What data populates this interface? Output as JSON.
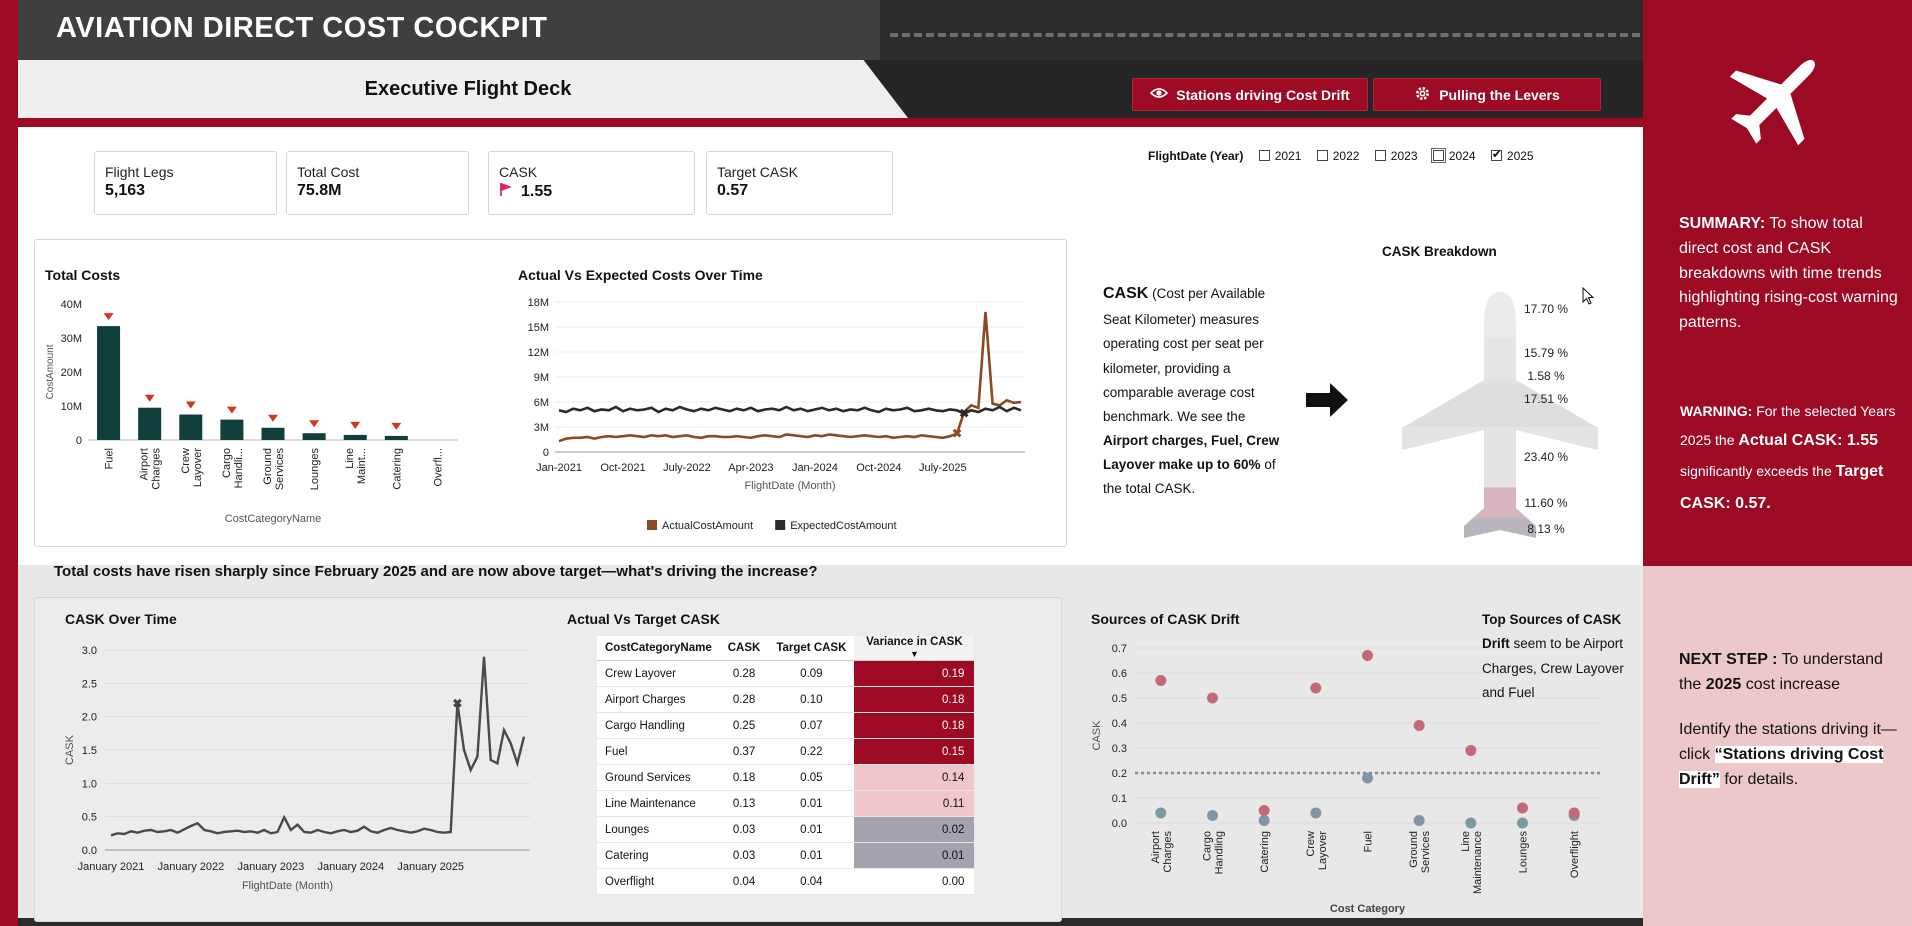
{
  "header": {
    "app_title": "AVIATION DIRECT COST COCKPIT",
    "subtitle": "Executive Flight Deck",
    "btn_stations": "Stations driving Cost Drift",
    "btn_levers": "Pulling the Levers"
  },
  "kpis": [
    {
      "label": "Flight Legs",
      "value": "5,163"
    },
    {
      "label": "Total Cost",
      "value": "75.8M"
    },
    {
      "label": "CASK",
      "value": "1.55"
    },
    {
      "label": "Target CASK",
      "value": "0.57"
    }
  ],
  "year_filter": {
    "label": "FlightDate (Year)",
    "years": [
      {
        "label": "2021",
        "checked": false
      },
      {
        "label": "2022",
        "checked": false
      },
      {
        "label": "2023",
        "checked": false
      },
      {
        "label": "2024",
        "checked": false
      },
      {
        "label": "2025",
        "checked": true
      }
    ]
  },
  "cask_text": {
    "lead": "CASK",
    "p1": " (Cost per Available Seat Kilometer) measures operating cost per seat per kilometer, providing a comparable average cost benchmark. We see the ",
    "bold": "Airport charges, Fuel, Crew Layover make up to 60%",
    "p2": " of the total CASK."
  },
  "question": "Total costs have risen sharply since February 2025 and are now above target—what's driving the increase?",
  "sidebar": {
    "summary_label": "SUMMARY:",
    "summary_text": " To show total direct cost and CASK breakdowns with time trends highlighting rising-cost warning patterns.",
    "warning_label": "WARNING:",
    "warning_t1": " For the selected Years   2025 the ",
    "warning_actual": "Actual CASK: 1.55",
    "warning_t2": " significantly exceeds the ",
    "warning_target": "Target CASK: 0.57.",
    "next_label": "NEXT STEP :",
    "next_t1": " To understand the ",
    "next_year": "2025",
    "next_t2": " cost increase",
    "identify_t1": "Identify the stations driving it—click ",
    "identify_link": "“Stations driving Cost Drift”",
    "identify_t2": " for details."
  },
  "chart_data": [
    {
      "type": "bar",
      "title": "Total Costs",
      "xlabel": "CostCategoryName",
      "ylabel": "CostAmount",
      "categories": [
        "Fuel",
        "Airport Charges",
        "Crew Layover",
        "Cargo Handli...",
        "Ground Services",
        "Lounges",
        "Line Maint...",
        "Catering",
        "Overfl..."
      ],
      "values": [
        33.5,
        9.5,
        7.5,
        6.0,
        3.6,
        2.0,
        1.5,
        1.2,
        0
      ],
      "yticks": [
        "0",
        "10M",
        "20M",
        "30M",
        "40M"
      ],
      "ylim": [
        0,
        40
      ],
      "color": "#11403c",
      "warning_color": "#d9341f"
    },
    {
      "type": "line",
      "title": "Actual Vs Expected Costs Over Time",
      "xlabel": "FlightDate (Month)",
      "xticks": [
        "Jan-2021",
        "Oct-2021",
        "July-2022",
        "Apr-2023",
        "Jan-2024",
        "Oct-2024",
        "July-2025"
      ],
      "yticks": [
        "0",
        "3M",
        "6M",
        "9M",
        "12M",
        "15M",
        "18M"
      ],
      "ylim": [
        0,
        18
      ],
      "series": [
        {
          "name": "ActualCostAmount",
          "color": "#8b4a22",
          "values": [
            1.3,
            1.6,
            1.7,
            1.7,
            1.8,
            1.6,
            1.8,
            1.9,
            1.8,
            1.9,
            2.0,
            1.9,
            1.8,
            2.0,
            1.9,
            2.0,
            1.8,
            1.9,
            2.0,
            1.8,
            1.7,
            1.9,
            1.9,
            1.8,
            1.8,
            1.9,
            1.8,
            1.7,
            1.9,
            2.0,
            1.9,
            1.8,
            2.1,
            2.0,
            1.9,
            1.8,
            2.0,
            1.9,
            2.1,
            2.0,
            1.9,
            1.8,
            1.9,
            2.0,
            1.9,
            1.8,
            1.9,
            1.7,
            1.8,
            1.9,
            1.8,
            2.0,
            1.9,
            1.8,
            1.7,
            1.9,
            2.2,
            4.8,
            5.6,
            5.3,
            16.8,
            5.8,
            5.6,
            6.2,
            5.9,
            6.0
          ]
        },
        {
          "name": "ExpectedCostAmount",
          "color": "#2a2a2a",
          "values": [
            5.0,
            4.8,
            5.2,
            5.0,
            5.3,
            4.9,
            5.1,
            5.0,
            5.4,
            4.9,
            5.2,
            5.0,
            5.1,
            5.3,
            4.8,
            5.2,
            5.0,
            5.4,
            5.1,
            4.9,
            5.2,
            5.0,
            5.3,
            5.1,
            4.9,
            5.2,
            5.0,
            5.3,
            4.9,
            5.1,
            5.2,
            5.0,
            5.4,
            5.0,
            5.2,
            4.9,
            5.1,
            5.3,
            5.0,
            5.2,
            4.9,
            5.1,
            5.0,
            5.3,
            5.0,
            4.8,
            5.2,
            5.0,
            5.1,
            5.3,
            4.9,
            5.0,
            5.2,
            5.0,
            4.9,
            5.1,
            5.0,
            4.6,
            5.0,
            4.8,
            5.2,
            5.0,
            5.4,
            4.9,
            5.3,
            5.0
          ]
        }
      ]
    },
    {
      "type": "pie",
      "title": "CASK Breakdown",
      "labels": [
        "17.70 %",
        "15.79 %",
        "1.58 %",
        "17.51 %",
        "23.40 %",
        "11.60 %",
        "8.13 %"
      ],
      "values": [
        17.7,
        15.79,
        1.58,
        17.51,
        23.4,
        11.6,
        8.13
      ]
    },
    {
      "type": "line",
      "title": "CASK Over Time",
      "xlabel": "FlightDate (Month)",
      "ylabel": "CASK",
      "xticks": [
        "January 2021",
        "January 2022",
        "January 2023",
        "January 2024",
        "January 2025"
      ],
      "yticks": [
        "0.0",
        "0.5",
        "1.0",
        "1.5",
        "2.0",
        "2.5",
        "3.0"
      ],
      "ylim": [
        0,
        3
      ],
      "color": "#4a4a4a",
      "values": [
        0.22,
        0.25,
        0.24,
        0.28,
        0.26,
        0.29,
        0.3,
        0.27,
        0.28,
        0.3,
        0.26,
        0.31,
        0.36,
        0.4,
        0.3,
        0.28,
        0.25,
        0.27,
        0.28,
        0.29,
        0.27,
        0.28,
        0.26,
        0.3,
        0.25,
        0.27,
        0.49,
        0.3,
        0.38,
        0.27,
        0.26,
        0.3,
        0.27,
        0.25,
        0.28,
        0.3,
        0.27,
        0.29,
        0.35,
        0.28,
        0.26,
        0.3,
        0.33,
        0.3,
        0.28,
        0.26,
        0.28,
        0.32,
        0.3,
        0.27,
        0.26,
        0.27,
        2.2,
        1.5,
        1.2,
        1.4,
        2.9,
        1.35,
        1.3,
        1.8,
        1.6,
        1.3,
        1.7
      ]
    },
    {
      "type": "table",
      "title": "Actual Vs Target CASK",
      "columns": [
        "CostCategoryName",
        "CASK",
        "Target CASK",
        "Variance in CASK"
      ],
      "rows": [
        {
          "name": "Crew Layover",
          "cask": "0.28",
          "target": "0.09",
          "var": "0.19",
          "bg": "#9c0a24",
          "fg": "#ffffff"
        },
        {
          "name": "Airport Charges",
          "cask": "0.28",
          "target": "0.10",
          "var": "0.18",
          "bg": "#9c0a24",
          "fg": "#ffffff"
        },
        {
          "name": "Cargo Handling",
          "cask": "0.25",
          "target": "0.07",
          "var": "0.18",
          "bg": "#9c0a24",
          "fg": "#ffffff"
        },
        {
          "name": "Fuel",
          "cask": "0.37",
          "target": "0.22",
          "var": "0.15",
          "bg": "#9c0a24",
          "fg": "#ffffff"
        },
        {
          "name": "Ground Services",
          "cask": "0.18",
          "target": "0.05",
          "var": "0.14",
          "bg": "#f1c6cb",
          "fg": "#111111"
        },
        {
          "name": "Line Maintenance",
          "cask": "0.13",
          "target": "0.01",
          "var": "0.11",
          "bg": "#f1c6cb",
          "fg": "#111111"
        },
        {
          "name": "Lounges",
          "cask": "0.03",
          "target": "0.01",
          "var": "0.02",
          "bg": "#a3a2ad",
          "fg": "#111111"
        },
        {
          "name": "Catering",
          "cask": "0.03",
          "target": "0.01",
          "var": "0.01",
          "bg": "#a3a2ad",
          "fg": "#111111"
        },
        {
          "name": "Overflight",
          "cask": "0.04",
          "target": "0.04",
          "var": "0.00",
          "bg": "#ffffff",
          "fg": "#111111"
        }
      ]
    },
    {
      "type": "scatter",
      "title": "Sources of CASK Drift",
      "xlabel": "Cost Category",
      "ylabel": "CASK",
      "categories": [
        "Airport Charges",
        "Cargo Handling",
        "Catering",
        "Crew Layover",
        "Fuel",
        "Ground Services",
        "Line Maintenance",
        "Lounges",
        "Overflight"
      ],
      "actual": [
        0.57,
        0.5,
        0.05,
        0.54,
        0.67,
        0.39,
        0.29,
        0.06,
        0.04
      ],
      "target": [
        0.04,
        0.03,
        0.01,
        0.04,
        0.18,
        0.01,
        0.0,
        0.0,
        0.03
      ],
      "reference_line": 0.2,
      "yticks": [
        "0.0",
        "0.1",
        "0.2",
        "0.3",
        "0.4",
        "0.5",
        "0.6",
        "0.7"
      ],
      "ylim": [
        0,
        0.7
      ],
      "actual_color": "#c4697a",
      "target_color": "#7d97a3",
      "note_bold": "Top Sources of CASK Drift",
      "note_text": " seem to be Airport Charges, Crew Layover and Fuel"
    }
  ]
}
